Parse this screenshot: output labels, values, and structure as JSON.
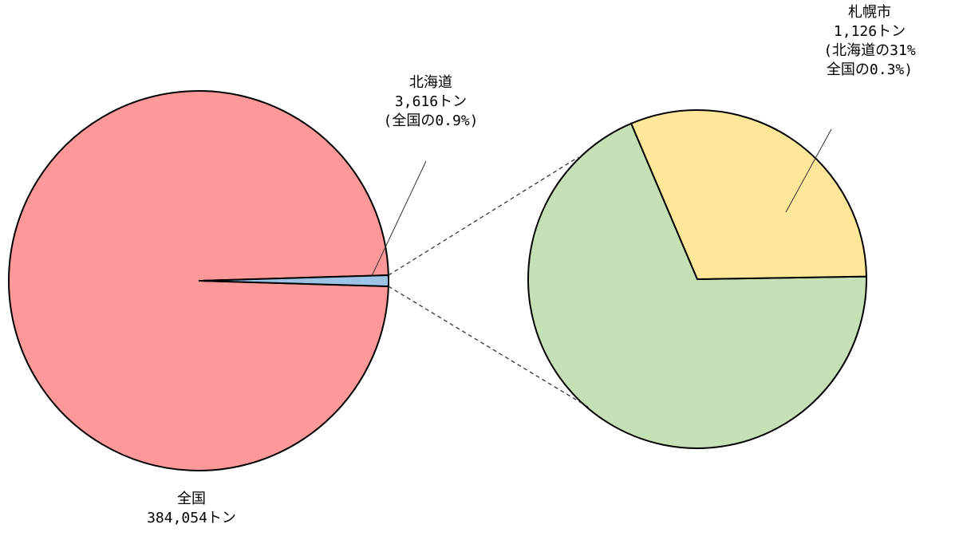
{
  "chart_data": [
    {
      "type": "pie",
      "slices": [
        {
          "name": "全国",
          "value": 384054,
          "color": "#ff9999"
        },
        {
          "name": "北海道",
          "value": 3616,
          "color": "#9dc3e6"
        }
      ],
      "labels": {
        "national": {
          "line1": "全国",
          "line2": "384,054トン"
        },
        "hokkaido": {
          "line1": "北海道",
          "line2": "3,616トン",
          "line3": "(全国の0.9%)"
        }
      }
    },
    {
      "type": "pie",
      "slices": [
        {
          "name": "札幌市",
          "value": 1126,
          "color": "#ffe699"
        },
        {
          "name": "",
          "value": 2490,
          "color": "#c5e0b4"
        }
      ],
      "labels": {
        "sapporo": {
          "line1": "札幌市",
          "line2": "1,126トン",
          "line3": "(北海道の31%",
          "line4": "全国の0.3%)"
        }
      }
    }
  ]
}
